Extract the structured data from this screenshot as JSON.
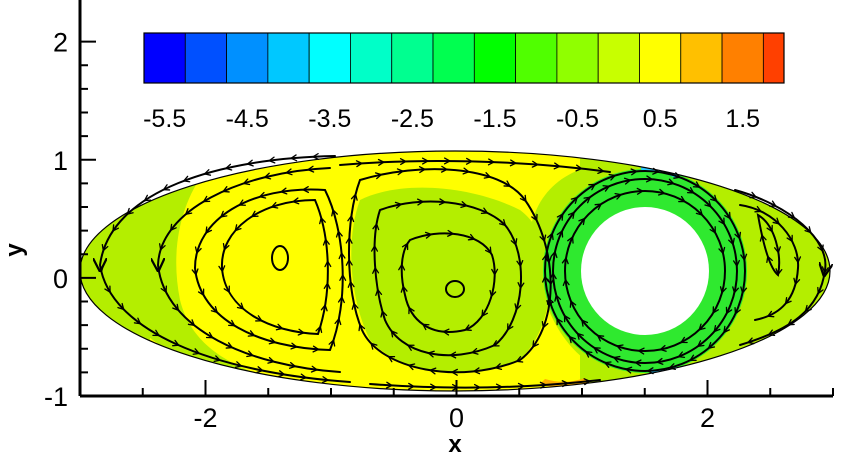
{
  "chart_data": {
    "type": "heatmap",
    "title": "",
    "xlabel": "x",
    "ylabel": "y",
    "xlim": [
      -3.0,
      3.0
    ],
    "ylim": [
      -1.0,
      2.2
    ],
    "x_ticks": [
      -2,
      0,
      2
    ],
    "x_tick_labels": [
      "-2",
      "0",
      "2"
    ],
    "y_ticks": [
      -1,
      0,
      1,
      2
    ],
    "y_tick_labels": [
      "-1",
      "0",
      "1",
      "2"
    ],
    "grid": false,
    "domain": {
      "shape": "ellipse",
      "center": [
        0,
        0
      ],
      "semi_axis_x": 3.0,
      "semi_axis_y": 0.95,
      "hole": {
        "shape": "circle",
        "center": [
          1.6,
          0
        ],
        "radius": 0.6
      }
    },
    "colorbar": {
      "orientation": "horizontal",
      "placement": "top",
      "levels": [
        -5.75,
        -5.25,
        -4.75,
        -4.25,
        -3.75,
        -3.25,
        -2.75,
        -2.25,
        -1.75,
        -1.25,
        -0.75,
        -0.25,
        0.25,
        0.75,
        1.25,
        1.75,
        2.0
      ],
      "colors": [
        "#0000ff",
        "#0050ff",
        "#0090ff",
        "#00c8ff",
        "#00ffff",
        "#00ffc8",
        "#00ff90",
        "#00ff50",
        "#00ff00",
        "#50ff00",
        "#90ff00",
        "#c8ff00",
        "#ffff00",
        "#ffc000",
        "#ff8000",
        "#ff4000",
        "#ff0000"
      ],
      "tick_values": [
        -5.5,
        -4.5,
        -3.5,
        -2.5,
        -1.5,
        -0.5,
        0.5,
        1.5
      ],
      "tick_labels": [
        "-5.5",
        "-4.5",
        "-3.5",
        "-2.5",
        "-1.5",
        "-0.5",
        "0.5",
        "1.5"
      ]
    },
    "field_regions": [
      {
        "name": "outer-rim",
        "value": -0.5,
        "color": "#b4ee00"
      },
      {
        "name": "left-vortex",
        "value": 0.5,
        "color": "#ffff00"
      },
      {
        "name": "middle-vortex",
        "value": -0.5,
        "color": "#b4ee00"
      },
      {
        "name": "cylinder-ring",
        "value": -1.5,
        "color": "#2fe92f"
      },
      {
        "name": "right-vortex",
        "value": -0.5,
        "color": "#b4ee00"
      }
    ],
    "vortex_centers": [
      {
        "name": "left-vortex",
        "x": -1.4,
        "y": 0.1
      },
      {
        "name": "middle-vortex",
        "x": 0.0,
        "y": -0.15
      },
      {
        "name": "cylinder",
        "x": 1.6,
        "y": 0.0
      },
      {
        "name": "right-vortex",
        "x": 2.5,
        "y": 0.05
      }
    ]
  }
}
